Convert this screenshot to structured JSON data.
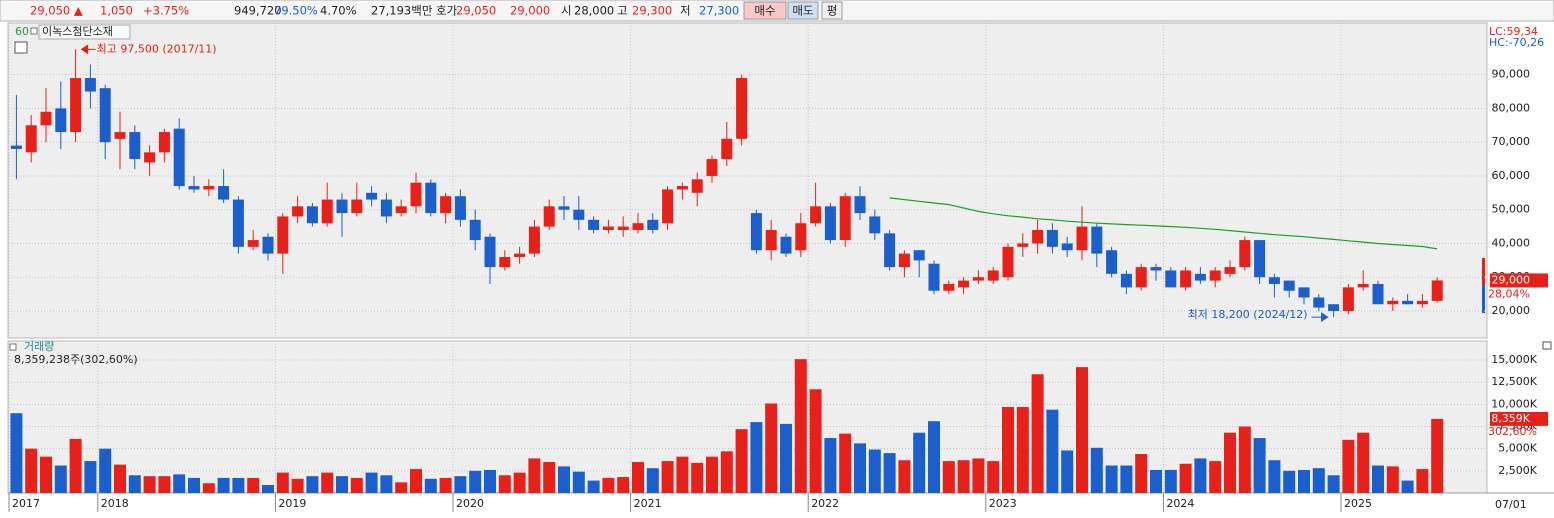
{
  "toolbar": {
    "price": "29,050 ▲",
    "change": "1,050",
    "change_pct": "+3.75%",
    "volume": "949,720",
    "volume_ratio": "79.50%",
    "turnover": "4.70%",
    "amount": "27,193백만",
    "quote_label": "호가",
    "ask": "29,050",
    "bid": "29,000",
    "open_label": "시",
    "open": "28,000",
    "high_label": "고",
    "high": "29,300",
    "low_label": "저",
    "low": "27,300",
    "buy": "매수",
    "sell": "매도",
    "avg": "평"
  },
  "header": {
    "period": "60",
    "name": "이녹스첨단소재"
  },
  "chart_data": [
    {
      "type": "candlestick",
      "up_color": "#e8201a",
      "down_color": "#1a5fcc",
      "grid": true,
      "lc_label": "LC:59,34",
      "hc_label": "HC:-70,26",
      "price_badge": "29,000",
      "price_badge_pct": "28,04%",
      "high_label": "최고 97,500 (2017/11)",
      "low_label": "최저 18,200 (2024/12)",
      "ylim": [
        12000,
        105300
      ],
      "yticks": [
        {
          "value": 20000,
          "label": "20,000"
        },
        {
          "value": 30000,
          "label": "30,000"
        },
        {
          "value": 40000,
          "label": "40,000"
        },
        {
          "value": 50000,
          "label": "50,000"
        },
        {
          "value": 60000,
          "label": "60,000"
        },
        {
          "value": 70000,
          "label": "70,000"
        },
        {
          "value": 80000,
          "label": "80,000"
        },
        {
          "value": 90000,
          "label": "90,000"
        }
      ],
      "open": [
        69000,
        67000,
        75000,
        80000,
        73000,
        89000,
        86000,
        71000,
        73000,
        64000,
        67000,
        74000,
        57000,
        56000,
        57000,
        53000,
        39000,
        42000,
        37000,
        48000,
        51000,
        46000,
        53000,
        49000,
        55000,
        53000,
        49000,
        51000,
        58000,
        49000,
        54000,
        47000,
        42000,
        33000,
        36000,
        37000,
        45000,
        51000,
        50000,
        47000,
        44000,
        44000,
        44000,
        47000,
        46000,
        56000,
        55000,
        60000,
        65000,
        71000,
        49000,
        38000,
        42000,
        38000,
        46000,
        51000,
        41000,
        54000,
        48000,
        43000,
        33000,
        38000,
        34000,
        26000,
        27000,
        29000,
        29000,
        30000,
        39000,
        40000,
        44000,
        40000,
        38000,
        45000,
        38000,
        31000,
        27000,
        33000,
        32000,
        27000,
        31000,
        29000,
        31000,
        33000,
        41000,
        30000,
        29000,
        27000,
        24000,
        22000,
        20000,
        27000,
        28000,
        22000,
        23000,
        22000,
        23000
      ],
      "high": [
        84000,
        78000,
        86000,
        88000,
        97500,
        93000,
        87000,
        79000,
        75000,
        69000,
        74000,
        77000,
        60000,
        59000,
        62000,
        54000,
        44000,
        43000,
        49000,
        54000,
        52000,
        58000,
        55000,
        58000,
        57000,
        55000,
        53000,
        61000,
        59000,
        55000,
        56000,
        50000,
        43000,
        38000,
        39000,
        47000,
        53000,
        54000,
        54000,
        48000,
        47000,
        48000,
        49000,
        49000,
        57000,
        58000,
        61000,
        66000,
        76000,
        90000,
        50000,
        47000,
        43000,
        49000,
        58000,
        52000,
        55000,
        57000,
        50000,
        44000,
        38000,
        38000,
        35000,
        29000,
        30000,
        32000,
        33000,
        40000,
        43000,
        47000,
        46000,
        42000,
        51000,
        46000,
        39000,
        32000,
        34000,
        34000,
        33000,
        33000,
        33000,
        33000,
        35000,
        42000,
        41000,
        31000,
        29000,
        27000,
        25000,
        22000,
        28000,
        32000,
        29000,
        24000,
        25000,
        25000,
        30000
      ],
      "low": [
        59000,
        64000,
        70000,
        68000,
        70000,
        80000,
        65000,
        62000,
        62000,
        60000,
        64000,
        56000,
        55000,
        54000,
        52000,
        37000,
        38000,
        35000,
        31000,
        46000,
        45000,
        45000,
        42000,
        48000,
        51000,
        46000,
        48000,
        49000,
        48000,
        46000,
        45000,
        38000,
        28000,
        32000,
        34000,
        36000,
        44000,
        47000,
        44000,
        43000,
        43000,
        42000,
        43000,
        43000,
        44000,
        53000,
        51000,
        58000,
        63000,
        69000,
        37000,
        35000,
        36000,
        36000,
        45000,
        40000,
        39000,
        47000,
        41000,
        32000,
        30000,
        30000,
        25000,
        25000,
        25000,
        28000,
        28000,
        29000,
        36000,
        37000,
        37000,
        36000,
        35000,
        33000,
        30000,
        25000,
        26000,
        29000,
        27000,
        26000,
        28000,
        27000,
        30000,
        32000,
        28000,
        24000,
        24000,
        22000,
        20000,
        18200,
        19000,
        26000,
        22000,
        20000,
        22000,
        21000,
        22500
      ],
      "close": [
        68000,
        75000,
        79000,
        73000,
        89000,
        85000,
        70000,
        73000,
        65000,
        67000,
        73000,
        57000,
        56000,
        57000,
        53000,
        39000,
        41000,
        37000,
        48000,
        51000,
        46000,
        53000,
        49000,
        53000,
        53000,
        48000,
        51000,
        58000,
        49000,
        54000,
        47000,
        41000,
        33000,
        36000,
        37000,
        45000,
        51000,
        50000,
        47000,
        44000,
        45000,
        45000,
        46000,
        44000,
        56000,
        57000,
        59000,
        65000,
        71000,
        89000,
        38000,
        44000,
        37000,
        46000,
        51000,
        41000,
        54000,
        49000,
        43000,
        33000,
        37000,
        35000,
        26000,
        28000,
        29000,
        30000,
        32000,
        39000,
        40000,
        44000,
        39000,
        38000,
        45000,
        37000,
        31000,
        27000,
        33000,
        32000,
        27000,
        32000,
        29000,
        32000,
        33000,
        41000,
        30000,
        28000,
        26000,
        24000,
        21000,
        20000,
        27000,
        28000,
        22000,
        23000,
        22000,
        23000,
        29050
      ],
      "moving_average": {
        "color": "#1f9e2e",
        "values": [
          null,
          null,
          null,
          null,
          null,
          null,
          null,
          null,
          null,
          null,
          null,
          null,
          null,
          null,
          null,
          null,
          null,
          null,
          null,
          null,
          null,
          null,
          null,
          null,
          null,
          null,
          null,
          null,
          null,
          null,
          null,
          null,
          null,
          null,
          null,
          null,
          null,
          null,
          null,
          null,
          null,
          null,
          null,
          null,
          null,
          null,
          null,
          null,
          null,
          null,
          null,
          null,
          null,
          null,
          null,
          null,
          null,
          null,
          null,
          53500,
          53000,
          52500,
          52000,
          51500,
          50500,
          49500,
          48800,
          48200,
          47800,
          47300,
          47000,
          46600,
          46300,
          46000,
          45800,
          45600,
          45400,
          45200,
          45000,
          44800,
          44500,
          44200,
          43800,
          43400,
          43000,
          42600,
          42300,
          42000,
          41600,
          41200,
          40800,
          40400,
          40000,
          39700,
          39400,
          39100,
          38400
        ]
      }
    },
    {
      "type": "bar",
      "title": "거래량",
      "subtitle": "8,359,238주(302,60%)",
      "badge": "8,359K",
      "badge_pct": "302,60%",
      "end_date_label": "07/01",
      "grid": true,
      "ylim": [
        0,
        17150
      ],
      "yticks": [
        {
          "value": 2500,
          "label": "2,500K"
        },
        {
          "value": 5000,
          "label": "5,000K"
        },
        {
          "value": 7500,
          "label": "7,500K"
        },
        {
          "value": 10000,
          "label": "10,000K"
        },
        {
          "value": 12500,
          "label": "12,500K"
        },
        {
          "value": 15000,
          "label": "15,000K"
        }
      ],
      "categories": [
        "2017",
        null,
        null,
        null,
        null,
        null,
        "2018",
        null,
        null,
        null,
        null,
        null,
        null,
        null,
        null,
        null,
        null,
        null,
        "2019",
        null,
        null,
        null,
        null,
        null,
        null,
        null,
        null,
        null,
        null,
        null,
        "2020",
        null,
        null,
        null,
        null,
        null,
        null,
        null,
        null,
        null,
        null,
        null,
        "2021",
        null,
        null,
        null,
        null,
        null,
        null,
        null,
        null,
        null,
        null,
        null,
        "2022",
        null,
        null,
        null,
        null,
        null,
        null,
        null,
        null,
        null,
        null,
        null,
        "2023",
        null,
        null,
        null,
        null,
        null,
        null,
        null,
        null,
        null,
        null,
        null,
        "2024",
        null,
        null,
        null,
        null,
        null,
        null,
        null,
        null,
        null,
        null,
        null,
        "2025",
        null,
        null,
        null,
        null,
        null,
        null
      ],
      "values": [
        9000,
        5000,
        4100,
        3100,
        6100,
        3600,
        5000,
        3200,
        2000,
        1900,
        1900,
        2100,
        1700,
        1100,
        1700,
        1700,
        1700,
        900,
        2300,
        1600,
        1900,
        2300,
        1900,
        1700,
        2300,
        2000,
        1200,
        2700,
        1600,
        1700,
        1900,
        2500,
        2600,
        2000,
        2300,
        3900,
        3500,
        3000,
        2400,
        1400,
        1700,
        1800,
        3500,
        2800,
        3600,
        4100,
        3400,
        4100,
        4700,
        7200,
        8000,
        10100,
        7800,
        15100,
        11700,
        6200,
        6700,
        5600,
        4900,
        4500,
        3700,
        6800,
        8100,
        3600,
        3700,
        3900,
        3600,
        9700,
        9700,
        13400,
        9400,
        4800,
        14200,
        5100,
        3100,
        3100,
        4400,
        2600,
        2600,
        3300,
        3900,
        3600,
        6800,
        7500,
        6200,
        3700,
        2500,
        2600,
        2800,
        2000,
        6000,
        6800,
        3100,
        3000,
        1400,
        2700,
        8359.238
      ]
    }
  ]
}
